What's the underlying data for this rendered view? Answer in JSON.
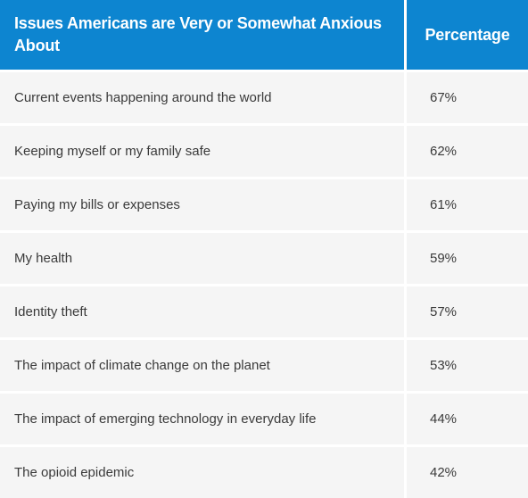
{
  "table": {
    "headers": {
      "issue": "Issues Americans are Very or Somewhat Anxious About",
      "percentage": "Percentage"
    },
    "rows": [
      {
        "issue": "Current events happening around the world",
        "percentage": "67%"
      },
      {
        "issue": "Keeping myself or my family safe",
        "percentage": "62%"
      },
      {
        "issue": "Paying my bills or expenses",
        "percentage": "61%"
      },
      {
        "issue": "My health",
        "percentage": "59%"
      },
      {
        "issue": "Identity theft",
        "percentage": "57%"
      },
      {
        "issue": "The impact of climate change on the planet",
        "percentage": "53%"
      },
      {
        "issue": "The impact of emerging technology in everyday life",
        "percentage": "44%"
      },
      {
        "issue": "The opioid epidemic",
        "percentage": "42%"
      }
    ]
  },
  "colors": {
    "header_bg": "#0d85d0",
    "row_bg": "#f5f5f5",
    "text": "#3a3a3a"
  }
}
